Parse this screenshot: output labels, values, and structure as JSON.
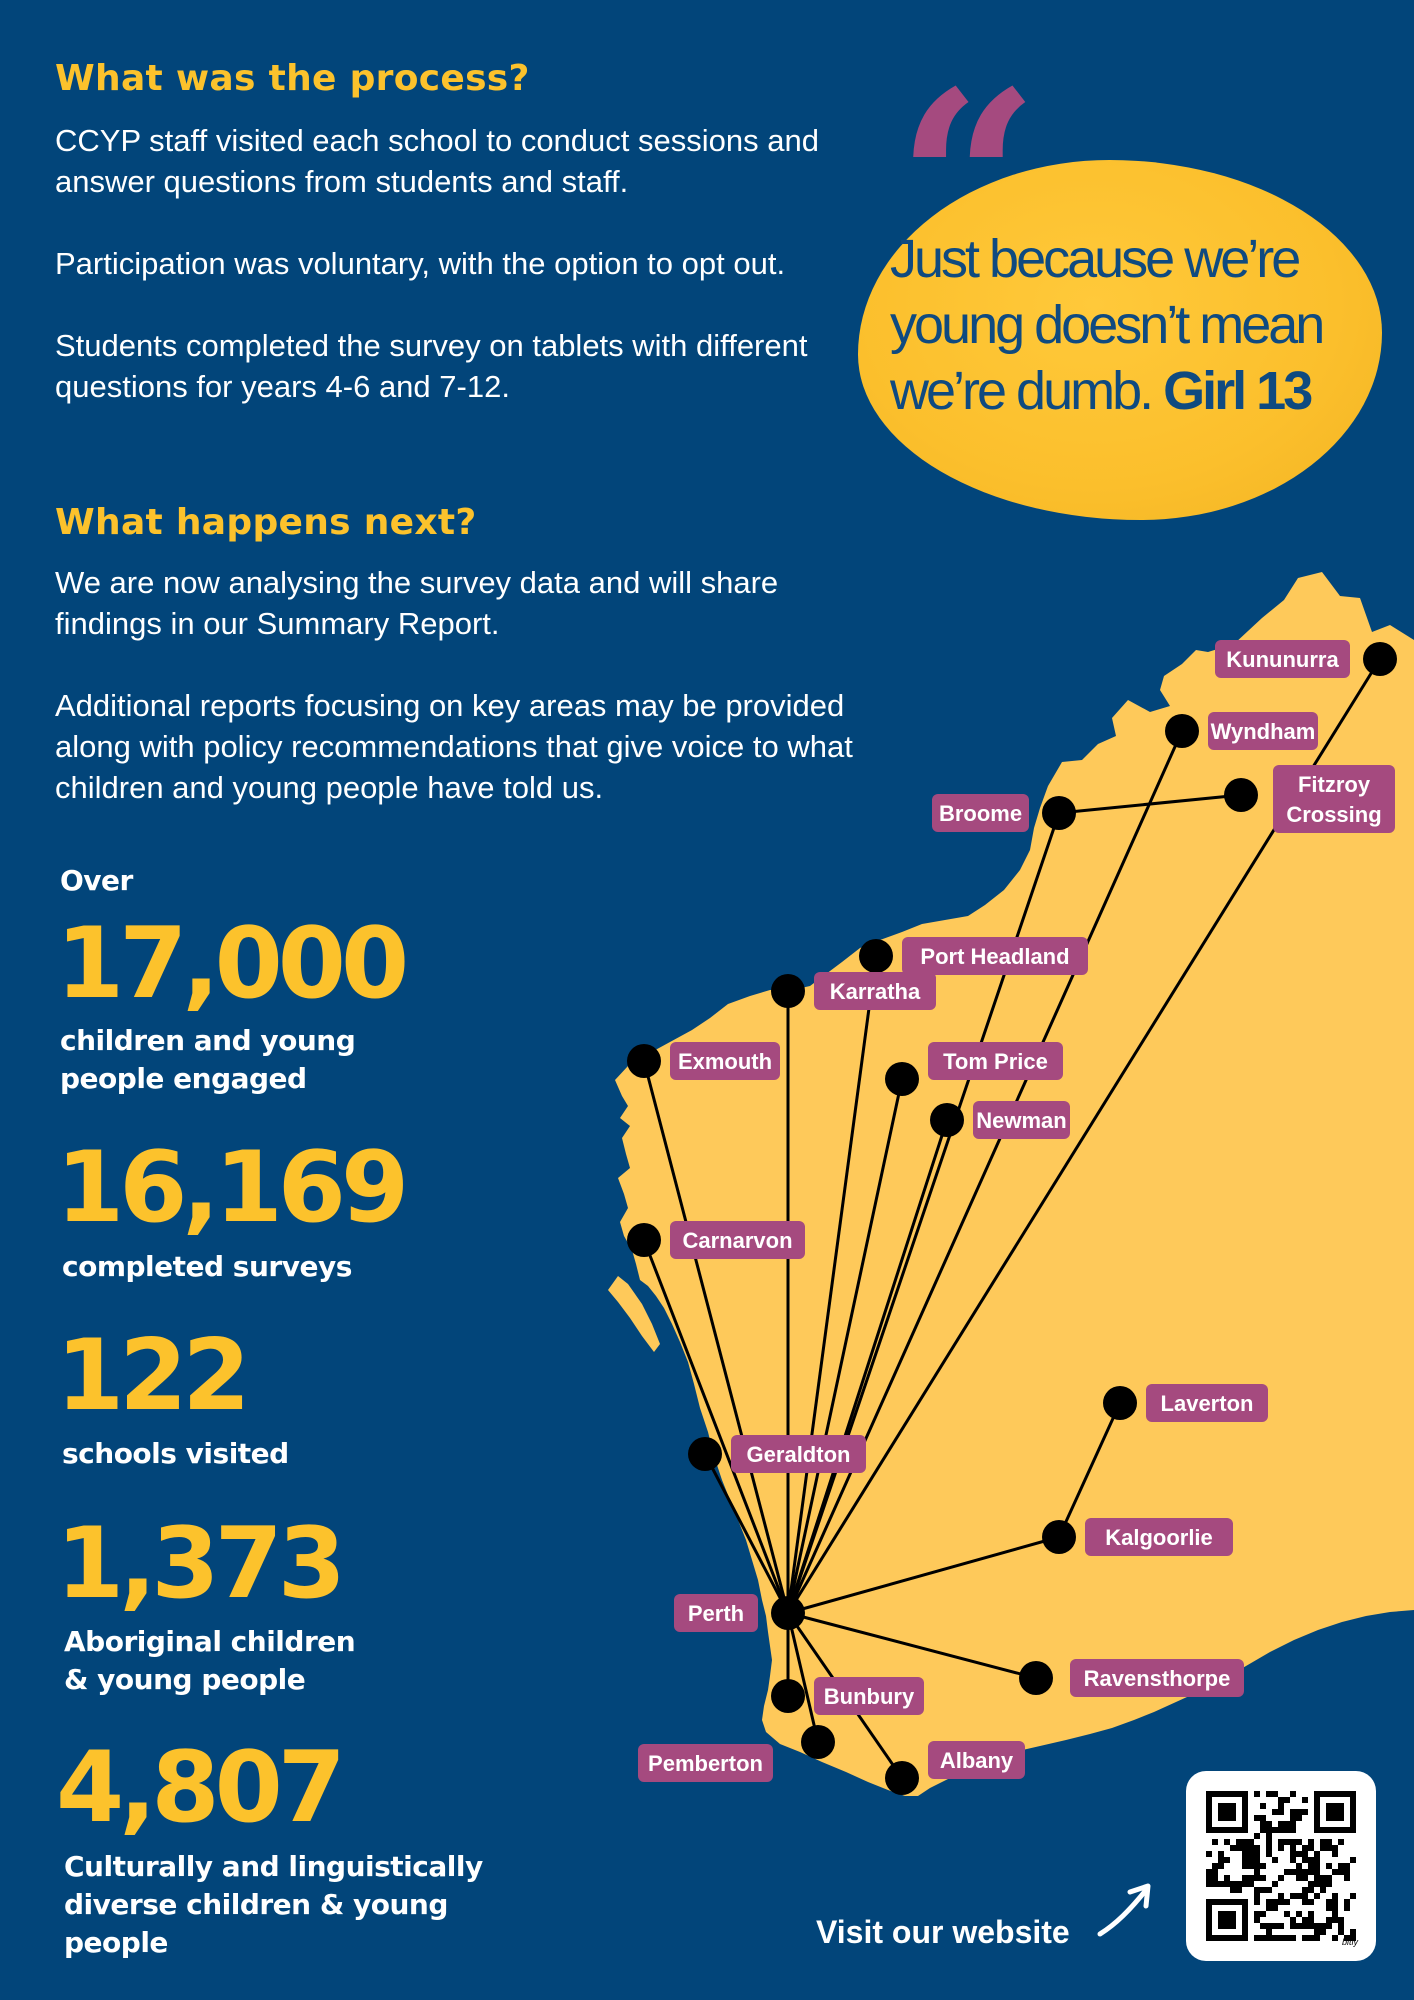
{
  "sections": {
    "process": {
      "heading": "What was the process?",
      "paragraphs": [
        "CCYP staff visited each school to conduct sessions and answer questions from students and staff.",
        "Participation was voluntary, with the option to opt out.",
        "Students completed the survey on tablets with different questions for years 4-6 and 7-12."
      ]
    },
    "next": {
      "heading": "What happens next?",
      "paragraphs": [
        "We are now analysing the survey data and will share findings in our Summary Report.",
        "Additional reports focusing on key areas may be provided along with policy recommendations that give voice to what children and young people have told us."
      ]
    }
  },
  "quote": {
    "text": "Just because we’re young doesn’t mean we’re dumb.",
    "attribution": "Girl 13"
  },
  "stats": {
    "prefix": "Over",
    "items": [
      {
        "value": "17,000",
        "label": [
          "children and young",
          "people engaged"
        ]
      },
      {
        "value": "16,169",
        "label": [
          "completed surveys"
        ]
      },
      {
        "value": "122",
        "label": [
          "schools visited"
        ]
      },
      {
        "value": "1,373",
        "label": [
          "Aboriginal children",
          "& young people"
        ]
      },
      {
        "value": "4,807",
        "label": [
          "Culturally and linguistically",
          "diverse children & young",
          "people"
        ]
      }
    ]
  },
  "map": {
    "hub": "Perth",
    "towns": [
      {
        "name": "Kununurra",
        "lines": [
          "Kununurra"
        ]
      },
      {
        "name": "Wyndham",
        "lines": [
          "Wyndham"
        ]
      },
      {
        "name": "Fitzroy Crossing",
        "lines": [
          "Fitzroy",
          "Crossing"
        ]
      },
      {
        "name": "Broome",
        "lines": [
          "Broome"
        ]
      },
      {
        "name": "Port Headland",
        "lines": [
          "Port Headland"
        ]
      },
      {
        "name": "Karratha",
        "lines": [
          "Karratha"
        ]
      },
      {
        "name": "Exmouth",
        "lines": [
          "Exmouth"
        ]
      },
      {
        "name": "Tom Price",
        "lines": [
          "Tom Price"
        ]
      },
      {
        "name": "Newman",
        "lines": [
          "Newman"
        ]
      },
      {
        "name": "Carnarvon",
        "lines": [
          "Carnarvon"
        ]
      },
      {
        "name": "Laverton",
        "lines": [
          "Laverton"
        ]
      },
      {
        "name": "Geraldton",
        "lines": [
          "Geraldton"
        ]
      },
      {
        "name": "Kalgoorlie",
        "lines": [
          "Kalgoorlie"
        ]
      },
      {
        "name": "Perth",
        "lines": [
          "Perth"
        ]
      },
      {
        "name": "Ravensthorpe",
        "lines": [
          "Ravensthorpe"
        ]
      },
      {
        "name": "Bunbury",
        "lines": [
          "Bunbury"
        ]
      },
      {
        "name": "Pemberton",
        "lines": [
          "Pemberton"
        ]
      },
      {
        "name": "Albany",
        "lines": [
          "Albany"
        ]
      }
    ],
    "connections": [
      [
        "Kununurra",
        "Perth"
      ],
      [
        "Wyndham",
        "Perth"
      ],
      [
        "Broome",
        "Fitzroy Crossing"
      ],
      [
        "Broome",
        "Perth"
      ],
      [
        "Port Headland",
        "Perth"
      ],
      [
        "Karratha",
        "Perth"
      ],
      [
        "Exmouth",
        "Perth"
      ],
      [
        "Tom Price",
        "Perth"
      ],
      [
        "Newman",
        "Perth"
      ],
      [
        "Carnarvon",
        "Perth"
      ],
      [
        "Geraldton",
        "Perth"
      ],
      [
        "Kalgoorlie",
        "Perth"
      ],
      [
        "Laverton",
        "Kalgoorlie"
      ],
      [
        "Ravensthorpe",
        "Perth"
      ],
      [
        "Bunbury",
        "Perth"
      ],
      [
        "Pemberton",
        "Perth"
      ],
      [
        "Albany",
        "Perth"
      ]
    ],
    "colors": {
      "land": "#fec95a",
      "label_bg": "#a54a7f",
      "dot": "#000000",
      "line": "#000000"
    }
  },
  "footer": {
    "visit_label": "Visit our website",
    "qr_caption": "bitly",
    "arrow_icon": "arrow-up-right-icon"
  },
  "colors": {
    "background": "#02457a",
    "accent": "#fcc22c",
    "quote_text": "#0f4a80"
  }
}
